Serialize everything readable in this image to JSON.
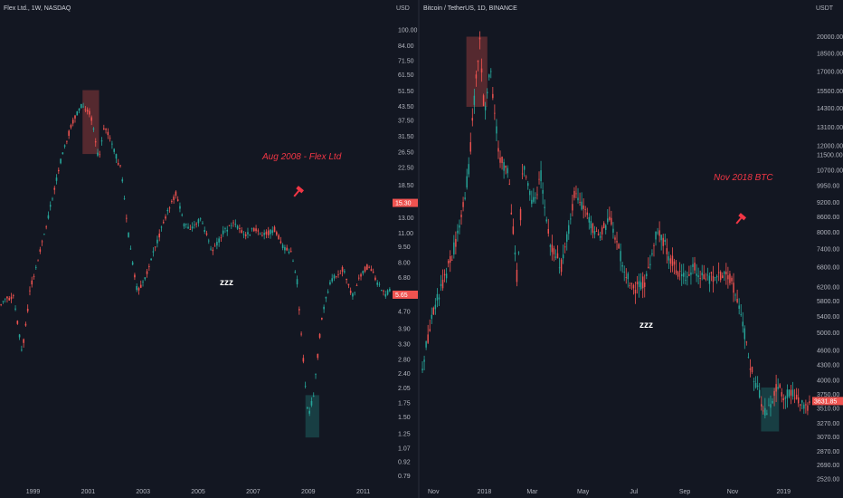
{
  "colors": {
    "background": "#131722",
    "up": "#26a69a",
    "down": "#ef5350",
    "annotation": "#f23645",
    "top_box": "#ef5350",
    "bottom_box": "#26a69a"
  },
  "chart_data": [
    {
      "type": "candlestick",
      "header": "Flex Ltd., 1W, NASDAQ",
      "axis_unit": "USD",
      "y_scale": "log",
      "ylim": [
        0.75,
        100
      ],
      "y_ticks": [
        "100.00",
        "84.00",
        "71.50",
        "61.50",
        "51.50",
        "43.50",
        "37.50",
        "31.50",
        "26.50",
        "22.50",
        "18.50",
        "15.50",
        "13.00",
        "11.00",
        "9.50",
        "8.00",
        "6.80",
        "5.65",
        "4.70",
        "3.90",
        "3.30",
        "2.80",
        "2.40",
        "2.05",
        "1.75",
        "1.50",
        "1.25",
        "1.07",
        "0.92",
        "0.79"
      ],
      "x_ticks": [
        "1999",
        "2001",
        "2003",
        "2005",
        "2007",
        "2009",
        "2011"
      ],
      "last_price": "15.30",
      "marker_price": "5.65",
      "annotation": "Aug 2008 - Flex Ltd",
      "sleep_label": "zzz",
      "icon": "hammer-icon",
      "path": [
        [
          1997.8,
          5.2
        ],
        [
          1998.3,
          5.6
        ],
        [
          1998.6,
          3.0
        ],
        [
          1998.9,
          6.0
        ],
        [
          1999.3,
          9.5
        ],
        [
          1999.7,
          16.0
        ],
        [
          2000.0,
          24.0
        ],
        [
          2000.4,
          36.0
        ],
        [
          2000.8,
          45.0
        ],
        [
          2001.1,
          40.0
        ],
        [
          2001.4,
          24.0
        ],
        [
          2001.6,
          36.0
        ],
        [
          2001.9,
          28.0
        ],
        [
          2002.2,
          22.0
        ],
        [
          2002.5,
          10.0
        ],
        [
          2002.8,
          5.8
        ],
        [
          2003.1,
          7.0
        ],
        [
          2003.5,
          10.0
        ],
        [
          2003.9,
          14.0
        ],
        [
          2004.2,
          17.0
        ],
        [
          2004.5,
          12.0
        ],
        [
          2004.8,
          11.5
        ],
        [
          2005.1,
          13.0
        ],
        [
          2005.5,
          9.0
        ],
        [
          2005.9,
          11.0
        ],
        [
          2006.3,
          12.5
        ],
        [
          2006.7,
          10.5
        ],
        [
          2007.0,
          11.5
        ],
        [
          2007.4,
          10.8
        ],
        [
          2007.8,
          11.5
        ],
        [
          2008.1,
          9.5
        ],
        [
          2008.4,
          9.0
        ],
        [
          2008.6,
          6.5
        ],
        [
          2008.8,
          3.0
        ],
        [
          2009.0,
          1.5
        ],
        [
          2009.2,
          1.9
        ],
        [
          2009.5,
          4.5
        ],
        [
          2009.8,
          6.5
        ],
        [
          2010.0,
          7.0
        ],
        [
          2010.3,
          7.5
        ],
        [
          2010.6,
          5.5
        ],
        [
          2010.9,
          7.0
        ],
        [
          2011.2,
          7.8
        ],
        [
          2011.5,
          6.5
        ],
        [
          2011.8,
          5.6
        ],
        [
          2012.0,
          6.0
        ]
      ],
      "top_zone": {
        "x": [
          2000.8,
          2001.4
        ],
        "y": [
          26.0,
          52.0
        ]
      },
      "bottom_zone": {
        "x": [
          2008.9,
          2009.4
        ],
        "y": [
          1.2,
          1.9
        ]
      }
    },
    {
      "type": "candlestick",
      "header": "Bitcoin / TetherUS, 1D, BINANCE",
      "axis_unit": "USDT",
      "y_scale": "log",
      "ylim": [
        2500,
        21000
      ],
      "y_ticks": [
        "20000.00",
        "18500.00",
        "17000.00",
        "15500.00",
        "14300.00",
        "13100.00",
        "12000.00",
        "11500.00",
        "10700.00",
        "9950.00",
        "9200.00",
        "8600.00",
        "8000.00",
        "7400.00",
        "6800.00",
        "6200.00",
        "5800.00",
        "5400.00",
        "5000.00",
        "4600.00",
        "4300.00",
        "4000.00",
        "3750.00",
        "3510.00",
        "3270.00",
        "3070.00",
        "2870.00",
        "2690.00",
        "2520.00"
      ],
      "x_ticks": [
        "Nov",
        "2018",
        "Mar",
        "May",
        "Jul",
        "Sep",
        "Nov",
        "2019"
      ],
      "last_price": "3631.85",
      "annotation": "Nov 2018 BTC",
      "sleep_label": "zzz",
      "icon": "hammer-icon",
      "path": [
        [
          2017.79,
          4200
        ],
        [
          2017.83,
          5600
        ],
        [
          2017.87,
          6500
        ],
        [
          2017.92,
          8200
        ],
        [
          2017.95,
          11000
        ],
        [
          2017.97,
          16000
        ],
        [
          2017.985,
          19500
        ],
        [
          2018.0,
          14000
        ],
        [
          2018.02,
          17000
        ],
        [
          2018.05,
          11500
        ],
        [
          2018.08,
          10500
        ],
        [
          2018.11,
          6400
        ],
        [
          2018.13,
          11000
        ],
        [
          2018.16,
          9000
        ],
        [
          2018.19,
          10500
        ],
        [
          2018.22,
          7500
        ],
        [
          2018.26,
          6800
        ],
        [
          2018.3,
          9500
        ],
        [
          2018.34,
          8800
        ],
        [
          2018.38,
          7800
        ],
        [
          2018.42,
          8500
        ],
        [
          2018.46,
          7000
        ],
        [
          2018.5,
          6100
        ],
        [
          2018.54,
          6400
        ],
        [
          2018.58,
          8200
        ],
        [
          2018.62,
          7100
        ],
        [
          2018.66,
          6500
        ],
        [
          2018.7,
          6800
        ],
        [
          2018.74,
          6400
        ],
        [
          2018.78,
          6550
        ],
        [
          2018.82,
          6500
        ],
        [
          2018.86,
          5500
        ],
        [
          2018.88,
          4500
        ],
        [
          2018.91,
          3900
        ],
        [
          2018.94,
          3400
        ],
        [
          2018.96,
          3600
        ],
        [
          2018.98,
          3900
        ],
        [
          2019.0,
          3700
        ],
        [
          2019.03,
          3800
        ],
        [
          2019.06,
          3600
        ],
        [
          2019.09,
          3550
        ]
      ],
      "top_zone": {
        "x": [
          2017.94,
          2018.01
        ],
        "y": [
          14400,
          20000
        ]
      },
      "bottom_zone": {
        "x": [
          2018.925,
          2018.985
        ],
        "y": [
          3150,
          3870
        ]
      }
    }
  ]
}
